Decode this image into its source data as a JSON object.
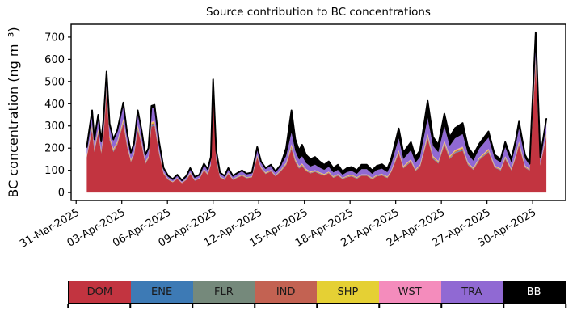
{
  "figure": {
    "title": "Source contribution to BC concentrations",
    "ylabel": "BC concentration (ng m⁻³)",
    "background": "#ffffff"
  },
  "chart_data": {
    "type": "area",
    "stacked": true,
    "title": "Source contribution to BC concentrations",
    "xlabel": "",
    "ylabel": "BC concentration (ng m⁻³)",
    "grid": false,
    "legend_position": "bottom",
    "x_unit": "days after 31-Mar-2025 00:00",
    "xlim": [
      -0.33,
      32.17
    ],
    "ylim": [
      -36,
      758
    ],
    "yticks": [
      0,
      100,
      200,
      300,
      400,
      500,
      600,
      700
    ],
    "xticks": {
      "days": [
        0,
        3,
        6,
        9,
        12,
        15,
        18,
        21,
        24,
        27,
        30
      ],
      "labels": [
        "31-Mar-2025",
        "03-Apr-2025",
        "06-Apr-2025",
        "09-Apr-2025",
        "12-Apr-2025",
        "15-Apr-2025",
        "18-Apr-2025",
        "21-Apr-2025",
        "24-Apr-2025",
        "27-Apr-2025",
        "30-Apr-2025"
      ]
    },
    "x": [
      0.7,
      0.9,
      1.05,
      1.2,
      1.45,
      1.65,
      1.8,
      2.0,
      2.2,
      2.45,
      2.7,
      3.1,
      3.35,
      3.6,
      3.8,
      4.05,
      4.3,
      4.55,
      4.75,
      4.95,
      5.15,
      5.45,
      5.75,
      6.05,
      6.35,
      6.65,
      6.95,
      7.25,
      7.5,
      7.8,
      8.1,
      8.4,
      8.65,
      8.85,
      9.0,
      9.2,
      9.45,
      9.75,
      10.0,
      10.3,
      10.65,
      10.9,
      11.2,
      11.55,
      11.9,
      12.15,
      12.45,
      12.8,
      13.1,
      13.45,
      13.8,
      14.15,
      14.4,
      14.65,
      14.85,
      15.1,
      15.4,
      15.7,
      16.0,
      16.3,
      16.6,
      16.9,
      17.2,
      17.5,
      17.8,
      18.1,
      18.45,
      18.75,
      19.1,
      19.45,
      19.75,
      20.1,
      20.45,
      20.7,
      21.2,
      21.5,
      22.0,
      22.3,
      22.6,
      23.1,
      23.45,
      23.8,
      24.2,
      24.55,
      24.9,
      25.4,
      25.75,
      26.1,
      26.5,
      27.1,
      27.5,
      27.9,
      28.2,
      28.6,
      28.9,
      29.1,
      29.5,
      29.8,
      30.2,
      30.5,
      30.9
    ],
    "series": [
      {
        "name": "DOM",
        "color": "#c23440",
        "values": [
          157,
          229,
          281,
          183,
          267,
          176,
          252,
          446,
          237,
          183,
          215,
          310,
          206,
          138,
          168,
          281,
          215,
          129,
          153,
          297,
          302,
          176,
          83,
          57,
          46,
          61,
          42,
          57,
          83,
          53,
          61,
          99,
          79,
          123,
          447,
          144,
          68,
          57,
          83,
          57,
          68,
          75,
          64,
          68,
          157,
          108,
          83,
          95,
          73,
          95,
          123,
          196,
          137,
          108,
          119,
          97,
          86,
          93,
          84,
          76,
          87,
          66,
          76,
          61,
          68,
          73,
          62,
          75,
          75,
          59,
          72,
          77,
          65,
          91,
          176,
          109,
          138,
          97,
          115,
          243,
          151,
          130,
          215,
          151,
          177,
          189,
          124,
          102,
          146,
          182,
          112,
          100,
          151,
          100,
          159,
          212,
          112,
          98,
          570,
          122,
          251
        ]
      },
      {
        "name": "ENE",
        "color": "#3d7ab5",
        "values": [
          2,
          2,
          3,
          2,
          3,
          2,
          3,
          4,
          2,
          2,
          2,
          3,
          2,
          1,
          2,
          3,
          2,
          1,
          2,
          3,
          3,
          2,
          1,
          1,
          0,
          1,
          0,
          1,
          1,
          1,
          1,
          1,
          1,
          1,
          3,
          2,
          1,
          1,
          1,
          1,
          1,
          1,
          1,
          1,
          2,
          1,
          1,
          1,
          1,
          1,
          2,
          3,
          2,
          2,
          2,
          1,
          1,
          1,
          1,
          1,
          1,
          1,
          1,
          1,
          1,
          1,
          1,
          1,
          1,
          1,
          1,
          1,
          1,
          1,
          2,
          1,
          2,
          1,
          2,
          3,
          2,
          2,
          3,
          2,
          2,
          3,
          2,
          1,
          2,
          2,
          1,
          1,
          2,
          1,
          2,
          3,
          1,
          1,
          6,
          1,
          3
        ]
      },
      {
        "name": "FLR",
        "color": "#75897b",
        "values": [
          1,
          2,
          3,
          2,
          2,
          2,
          2,
          4,
          2,
          2,
          2,
          3,
          2,
          1,
          2,
          3,
          2,
          1,
          1,
          3,
          3,
          2,
          1,
          1,
          0,
          1,
          0,
          1,
          1,
          0,
          1,
          1,
          1,
          1,
          3,
          1,
          1,
          1,
          1,
          1,
          1,
          1,
          1,
          1,
          1,
          1,
          1,
          1,
          1,
          1,
          1,
          3,
          2,
          1,
          2,
          1,
          1,
          1,
          1,
          1,
          1,
          1,
          1,
          1,
          1,
          1,
          1,
          1,
          1,
          1,
          1,
          1,
          1,
          1,
          2,
          1,
          2,
          1,
          1,
          3,
          2,
          2,
          2,
          2,
          2,
          2,
          1,
          1,
          2,
          2,
          1,
          1,
          2,
          1,
          2,
          2,
          1,
          1,
          5,
          1,
          2
        ]
      },
      {
        "name": "IND",
        "color": "#c36252",
        "values": [
          3,
          5,
          6,
          4,
          5,
          3,
          5,
          8,
          5,
          4,
          4,
          6,
          4,
          3,
          3,
          6,
          4,
          3,
          3,
          6,
          6,
          3,
          2,
          1,
          1,
          1,
          1,
          1,
          2,
          1,
          1,
          2,
          2,
          2,
          6,
          3,
          1,
          1,
          2,
          1,
          1,
          2,
          1,
          1,
          3,
          2,
          2,
          2,
          1,
          2,
          3,
          6,
          4,
          3,
          3,
          3,
          2,
          2,
          2,
          2,
          2,
          2,
          2,
          1,
          2,
          2,
          2,
          2,
          2,
          2,
          2,
          2,
          2,
          2,
          4,
          3,
          3,
          2,
          3,
          6,
          4,
          3,
          5,
          4,
          4,
          5,
          3,
          3,
          3,
          4,
          3,
          2,
          3,
          2,
          4,
          5,
          3,
          2,
          11,
          2,
          5
        ]
      },
      {
        "name": "SHP",
        "color": "#e5d034",
        "values": [
          3,
          5,
          6,
          4,
          5,
          3,
          5,
          8,
          5,
          4,
          4,
          6,
          4,
          3,
          3,
          6,
          4,
          3,
          3,
          6,
          6,
          3,
          2,
          1,
          1,
          1,
          1,
          1,
          2,
          1,
          1,
          2,
          2,
          2,
          6,
          3,
          1,
          1,
          2,
          1,
          1,
          2,
          1,
          1,
          3,
          2,
          2,
          2,
          1,
          2,
          3,
          6,
          4,
          3,
          3,
          3,
          2,
          2,
          2,
          2,
          2,
          2,
          2,
          1,
          2,
          2,
          2,
          2,
          2,
          2,
          2,
          2,
          2,
          2,
          4,
          3,
          3,
          2,
          3,
          6,
          4,
          3,
          5,
          4,
          4,
          5,
          3,
          3,
          3,
          4,
          3,
          2,
          3,
          2,
          4,
          5,
          3,
          2,
          11,
          2,
          5
        ]
      },
      {
        "name": "WST",
        "color": "#f48cbc",
        "values": [
          2,
          3,
          4,
          2,
          4,
          2,
          3,
          6,
          3,
          2,
          3,
          4,
          3,
          2,
          2,
          4,
          3,
          2,
          2,
          4,
          4,
          2,
          1,
          1,
          1,
          1,
          1,
          1,
          1,
          1,
          1,
          1,
          1,
          2,
          4,
          2,
          1,
          1,
          1,
          1,
          1,
          1,
          1,
          1,
          2,
          1,
          1,
          1,
          1,
          1,
          2,
          4,
          2,
          2,
          2,
          2,
          2,
          2,
          1,
          1,
          1,
          1,
          1,
          1,
          1,
          1,
          1,
          1,
          1,
          1,
          1,
          1,
          1,
          2,
          3,
          2,
          2,
          2,
          2,
          4,
          2,
          2,
          4,
          2,
          3,
          3,
          2,
          2,
          2,
          3,
          2,
          2,
          2,
          2,
          2,
          3,
          2,
          1,
          7,
          2,
          3
        ]
      },
      {
        "name": "TRA",
        "color": "#9069d3",
        "values": [
          31,
          45,
          56,
          36,
          53,
          35,
          50,
          44,
          47,
          36,
          42,
          61,
          41,
          27,
          33,
          56,
          42,
          26,
          30,
          59,
          59,
          35,
          17,
          11,
          9,
          12,
          8,
          11,
          17,
          11,
          12,
          20,
          16,
          24,
          31,
          29,
          14,
          11,
          17,
          11,
          14,
          15,
          13,
          14,
          31,
          21,
          17,
          19,
          14,
          19,
          30,
          52,
          36,
          29,
          32,
          26,
          23,
          24,
          21,
          19,
          21,
          17,
          19,
          14,
          17,
          17,
          15,
          23,
          23,
          18,
          22,
          23,
          19,
          27,
          52,
          32,
          41,
          29,
          34,
          70,
          45,
          39,
          64,
          45,
          52,
          56,
          37,
          31,
          40,
          50,
          31,
          27,
          41,
          27,
          43,
          58,
          31,
          18,
          87,
          22,
          46
        ]
      },
      {
        "name": "BB",
        "color": "#000000",
        "values": [
          6,
          9,
          11,
          7,
          11,
          7,
          10,
          25,
          9,
          7,
          8,
          12,
          8,
          5,
          7,
          11,
          8,
          5,
          6,
          12,
          12,
          7,
          3,
          2,
          2,
          2,
          2,
          2,
          3,
          2,
          2,
          4,
          3,
          5,
          10,
          6,
          3,
          2,
          3,
          2,
          3,
          3,
          3,
          3,
          6,
          4,
          3,
          4,
          3,
          4,
          36,
          100,
          53,
          42,
          52,
          37,
          33,
          35,
          28,
          23,
          25,
          20,
          23,
          15,
          18,
          18,
          16,
          20,
          20,
          16,
          19,
          20,
          17,
          24,
          46,
          29,
          36,
          26,
          30,
          78,
          40,
          34,
          57,
          40,
          46,
          50,
          33,
          27,
          22,
          28,
          17,
          15,
          23,
          15,
          24,
          32,
          17,
          7,
          25,
          8,
          17
        ]
      }
    ],
    "total_line_color": "#000000",
    "axis_color": "#000000"
  },
  "legend": {
    "items": [
      {
        "label": "DOM",
        "color": "#c23440",
        "text_color": "#1a1a1a"
      },
      {
        "label": "ENE",
        "color": "#3d7ab5",
        "text_color": "#1a1a1a"
      },
      {
        "label": "FLR",
        "color": "#75897b",
        "text_color": "#1a1a1a"
      },
      {
        "label": "IND",
        "color": "#c36252",
        "text_color": "#1a1a1a"
      },
      {
        "label": "SHP",
        "color": "#e5d034",
        "text_color": "#1a1a1a"
      },
      {
        "label": "WST",
        "color": "#f48cbc",
        "text_color": "#1a1a1a"
      },
      {
        "label": "TRA",
        "color": "#9069d3",
        "text_color": "#1a1a1a"
      },
      {
        "label": "BB",
        "color": "#000000",
        "text_color": "#ffffff"
      }
    ]
  }
}
